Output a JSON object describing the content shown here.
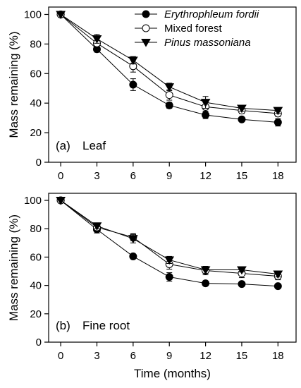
{
  "chart_data": [
    {
      "type": "line",
      "panel_label": "(a)",
      "panel_name": "Leaf",
      "x": [
        0,
        3,
        6,
        9,
        12,
        15,
        18
      ],
      "xlim": [
        -1,
        19.5
      ],
      "ylim": [
        0,
        105
      ],
      "xticks": [
        "0",
        "3",
        "6",
        "9",
        "12",
        "15",
        "18"
      ],
      "yticks": [
        "0",
        "20",
        "40",
        "60",
        "80",
        "100"
      ],
      "xlabel": "",
      "ylabel": "Mass remaining (%)",
      "grid": false,
      "legend_position": "top-right",
      "series": [
        {
          "name": "Erythrophleum fordii",
          "marker": "filled-circle",
          "values": [
            100,
            76.5,
            52.5,
            38.5,
            32,
            29,
            27
          ],
          "errors": [
            0,
            2,
            4,
            2,
            2.5,
            1.5,
            2.5
          ]
        },
        {
          "name": "Mixed forest",
          "marker": "open-circle",
          "values": [
            100,
            80.5,
            65,
            45.5,
            37.5,
            35,
            33
          ],
          "errors": [
            0,
            3,
            4,
            3.5,
            3,
            2,
            2
          ]
        },
        {
          "name": "Pinus massoniana",
          "marker": "filled-triangle-down",
          "values": [
            100,
            83.5,
            69,
            51,
            40.5,
            36.5,
            35
          ],
          "errors": [
            0,
            3,
            2.5,
            2.5,
            4,
            2,
            2
          ]
        }
      ]
    },
    {
      "type": "line",
      "panel_label": "(b)",
      "panel_name": "Fine root",
      "x": [
        0,
        3,
        6,
        9,
        12,
        15,
        18
      ],
      "xlim": [
        -1,
        19.5
      ],
      "ylim": [
        0,
        105
      ],
      "xticks": [
        "0",
        "3",
        "6",
        "9",
        "12",
        "15",
        "18"
      ],
      "yticks": [
        "0",
        "20",
        "40",
        "60",
        "80",
        "100"
      ],
      "xlabel": "Time (months)",
      "ylabel": "Mass remaining (%)",
      "grid": false,
      "series": [
        {
          "name": "Erythrophleum fordii",
          "marker": "filled-circle",
          "values": [
            100,
            79.5,
            60.5,
            46,
            41.5,
            41,
            39.5
          ],
          "errors": [
            0,
            2.5,
            1.5,
            3,
            1.5,
            1.5,
            1.5
          ]
        },
        {
          "name": "Mixed forest",
          "marker": "open-circle",
          "values": [
            100,
            81,
            74,
            55,
            50.5,
            48.5,
            46.5
          ],
          "errors": [
            0,
            2,
            2.5,
            3.5,
            3,
            3,
            2.5
          ]
        },
        {
          "name": "Pinus massoniana",
          "marker": "filled-triangle-down",
          "values": [
            100,
            82,
            73,
            58,
            51,
            51,
            48
          ],
          "errors": [
            0,
            2,
            3,
            2.5,
            2.5,
            1.5,
            2
          ]
        }
      ]
    }
  ]
}
